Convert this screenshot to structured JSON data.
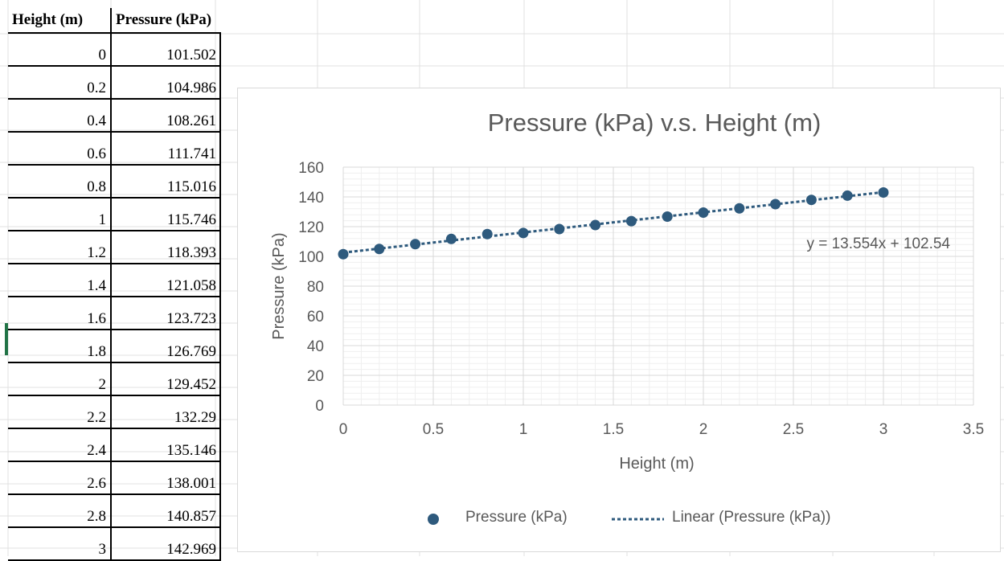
{
  "table": {
    "headers": [
      "Height (m)",
      "Pressure (kPa)"
    ],
    "rows": [
      [
        "0",
        "101.502"
      ],
      [
        "0.2",
        "104.986"
      ],
      [
        "0.4",
        "108.261"
      ],
      [
        "0.6",
        "111.741"
      ],
      [
        "0.8",
        "115.016"
      ],
      [
        "1",
        "115.746"
      ],
      [
        "1.2",
        "118.393"
      ],
      [
        "1.4",
        "121.058"
      ],
      [
        "1.6",
        "123.723"
      ],
      [
        "1.8",
        "126.769"
      ],
      [
        "2",
        "129.452"
      ],
      [
        "2.2",
        "132.29"
      ],
      [
        "2.4",
        "135.146"
      ],
      [
        "2.6",
        "138.001"
      ],
      [
        "2.8",
        "140.857"
      ],
      [
        "3",
        "142.969"
      ]
    ]
  },
  "chart_data": {
    "type": "scatter",
    "title": "Pressure (kPa) v.s. Height (m)",
    "xlabel": "Height (m)",
    "ylabel": "Pressure (kPa)",
    "xlim": [
      0,
      3.5
    ],
    "ylim": [
      0,
      160
    ],
    "xticks": [
      "0",
      "0.5",
      "1",
      "1.5",
      "2",
      "2.5",
      "3",
      "3.5"
    ],
    "yticks": [
      "0",
      "20",
      "40",
      "60",
      "80",
      "100",
      "120",
      "140",
      "160"
    ],
    "grid": true,
    "legend_position": "bottom",
    "series": [
      {
        "name": "Pressure (kPa)",
        "x": [
          0,
          0.2,
          0.4,
          0.6,
          0.8,
          1,
          1.2,
          1.4,
          1.6,
          1.8,
          2,
          2.2,
          2.4,
          2.6,
          2.8,
          3
        ],
        "y": [
          101.502,
          104.986,
          108.261,
          111.741,
          115.016,
          115.746,
          118.393,
          121.058,
          123.723,
          126.769,
          129.452,
          132.29,
          135.146,
          138.001,
          140.857,
          142.969
        ],
        "color": "#2e5a7d"
      }
    ],
    "trendline": {
      "name": "Linear (Pressure (kPa))",
      "slope": 13.554,
      "intercept": 102.54,
      "x_range": [
        0,
        3
      ],
      "equation": "y = 13.554x + 102.54",
      "color": "#2e5a7d"
    }
  }
}
